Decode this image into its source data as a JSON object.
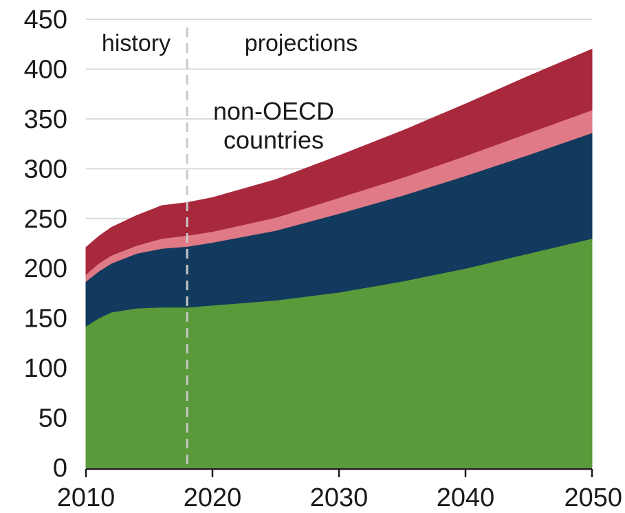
{
  "chart_data": {
    "type": "area",
    "stacked": true,
    "x": [
      2010,
      2011,
      2012,
      2014,
      2016,
      2018,
      2020,
      2025,
      2030,
      2035,
      2040,
      2045,
      2050
    ],
    "series": [
      {
        "color": "#5a9a3a",
        "values": [
          142,
          150,
          156,
          160,
          161,
          161,
          163,
          168,
          176,
          187,
          200,
          215,
          230
        ]
      },
      {
        "color": "#123a5e",
        "values": [
          45,
          47,
          49,
          55,
          59,
          61,
          63,
          70,
          79,
          86,
          93,
          99,
          106
        ]
      },
      {
        "color": "#e07a86",
        "values": [
          7,
          8,
          8,
          8,
          10,
          11,
          11,
          13,
          16,
          18,
          20,
          22,
          23
        ]
      },
      {
        "color": "#a8283c",
        "values": [
          27,
          27,
          28,
          30,
          33,
          33,
          34,
          38,
          42,
          47,
          52,
          57,
          61
        ]
      }
    ],
    "xlim": [
      2010,
      2050
    ],
    "ylim": [
      0,
      450
    ],
    "x_ticks": [
      2010,
      2020,
      2030,
      2040,
      2050
    ],
    "y_ticks": [
      0,
      50,
      100,
      150,
      200,
      250,
      300,
      350,
      400,
      450
    ],
    "grid": "horizontal",
    "divider_x": 2018,
    "annotations": {
      "history": "history",
      "projections": "projections",
      "region_line1": "non-OECD",
      "region_line2": "countries"
    }
  }
}
